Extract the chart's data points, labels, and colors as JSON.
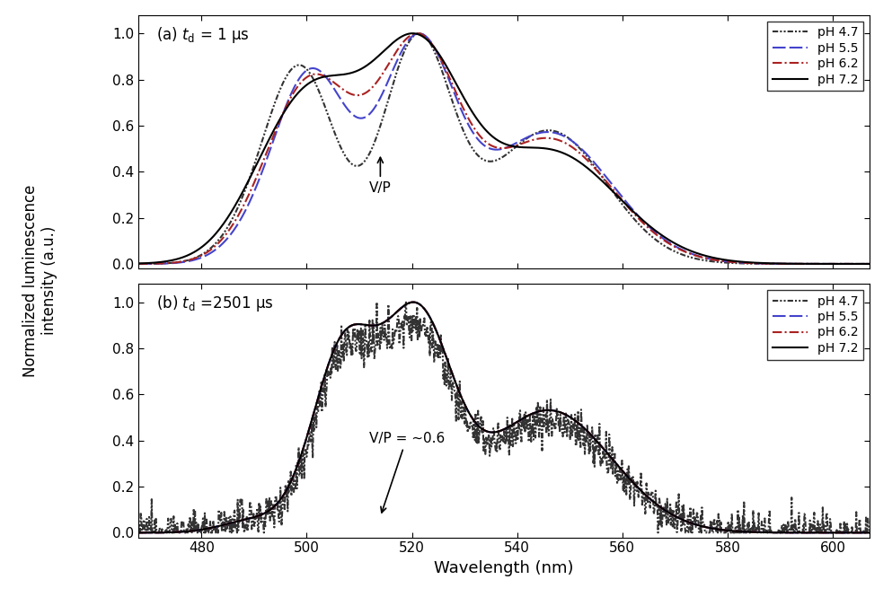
{
  "xlabel": "Wavelength (nm)",
  "ylabel": "Normalized luminescence\nintensity (a.u.)",
  "xlim": [
    468,
    607
  ],
  "ylim": [
    -0.02,
    1.08
  ],
  "xticks": [
    480,
    500,
    520,
    540,
    560,
    580,
    600
  ],
  "yticks": [
    0.0,
    0.2,
    0.4,
    0.6,
    0.8,
    1.0
  ],
  "panel_a_label": "(a) $t_{\\mathrm{d}}$ = 1 μs",
  "panel_b_label": "(b) $t_{\\mathrm{d}}$ =2501 μs",
  "legend_labels": [
    "pH 4.7",
    "pH 5.5",
    "pH 6.2",
    "pH 7.2"
  ],
  "colors": {
    "pH47": "#333333",
    "pH55": "#4444cc",
    "pH62": "#aa2222",
    "pH72": "#000000"
  }
}
